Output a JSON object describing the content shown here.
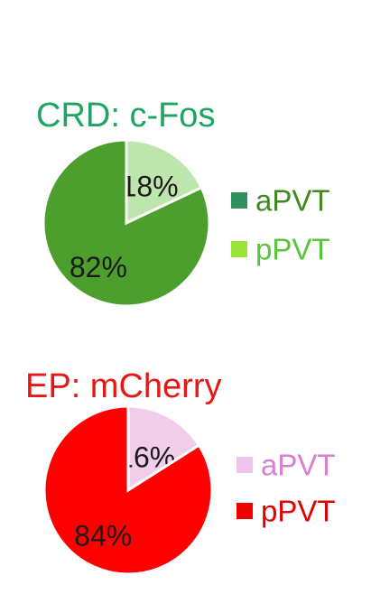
{
  "chart_data": [
    {
      "type": "pie",
      "title": "CRD: c-Fos",
      "title_color": "#1fa463",
      "start": "12 o'clock",
      "direction": "clockwise",
      "slices": [
        {
          "label": "aPVT",
          "value": 18,
          "value_label": "18%",
          "color": "#bde6ad"
        },
        {
          "label": "pPVT",
          "value": 82,
          "value_label": "82%",
          "color": "#4c9f2c"
        }
      ],
      "legend": {
        "position": "right",
        "entries": [
          {
            "label": "aPVT",
            "marker_color": "#2f8f5f",
            "text_color": "#3d8a1e"
          },
          {
            "label": "pPVT",
            "marker_color": "#9be539",
            "text_color": "#57c43a"
          }
        ]
      }
    },
    {
      "type": "pie",
      "title": "EP: mCherry",
      "title_color": "#e61717",
      "start": "12 o'clock",
      "direction": "clockwise",
      "slices": [
        {
          "label": "aPVT",
          "value": 16,
          "value_label": "16%",
          "color": "#f2cdea"
        },
        {
          "label": "pPVT",
          "value": 84,
          "value_label": "84%",
          "color": "#ff0000"
        }
      ],
      "legend": {
        "position": "right",
        "entries": [
          {
            "label": "aPVT",
            "marker_color": "#f1c3ef",
            "text_color": "#d77fd0"
          },
          {
            "label": "pPVT",
            "marker_color": "#ee0000",
            "text_color": "#e00000"
          }
        ]
      }
    }
  ]
}
